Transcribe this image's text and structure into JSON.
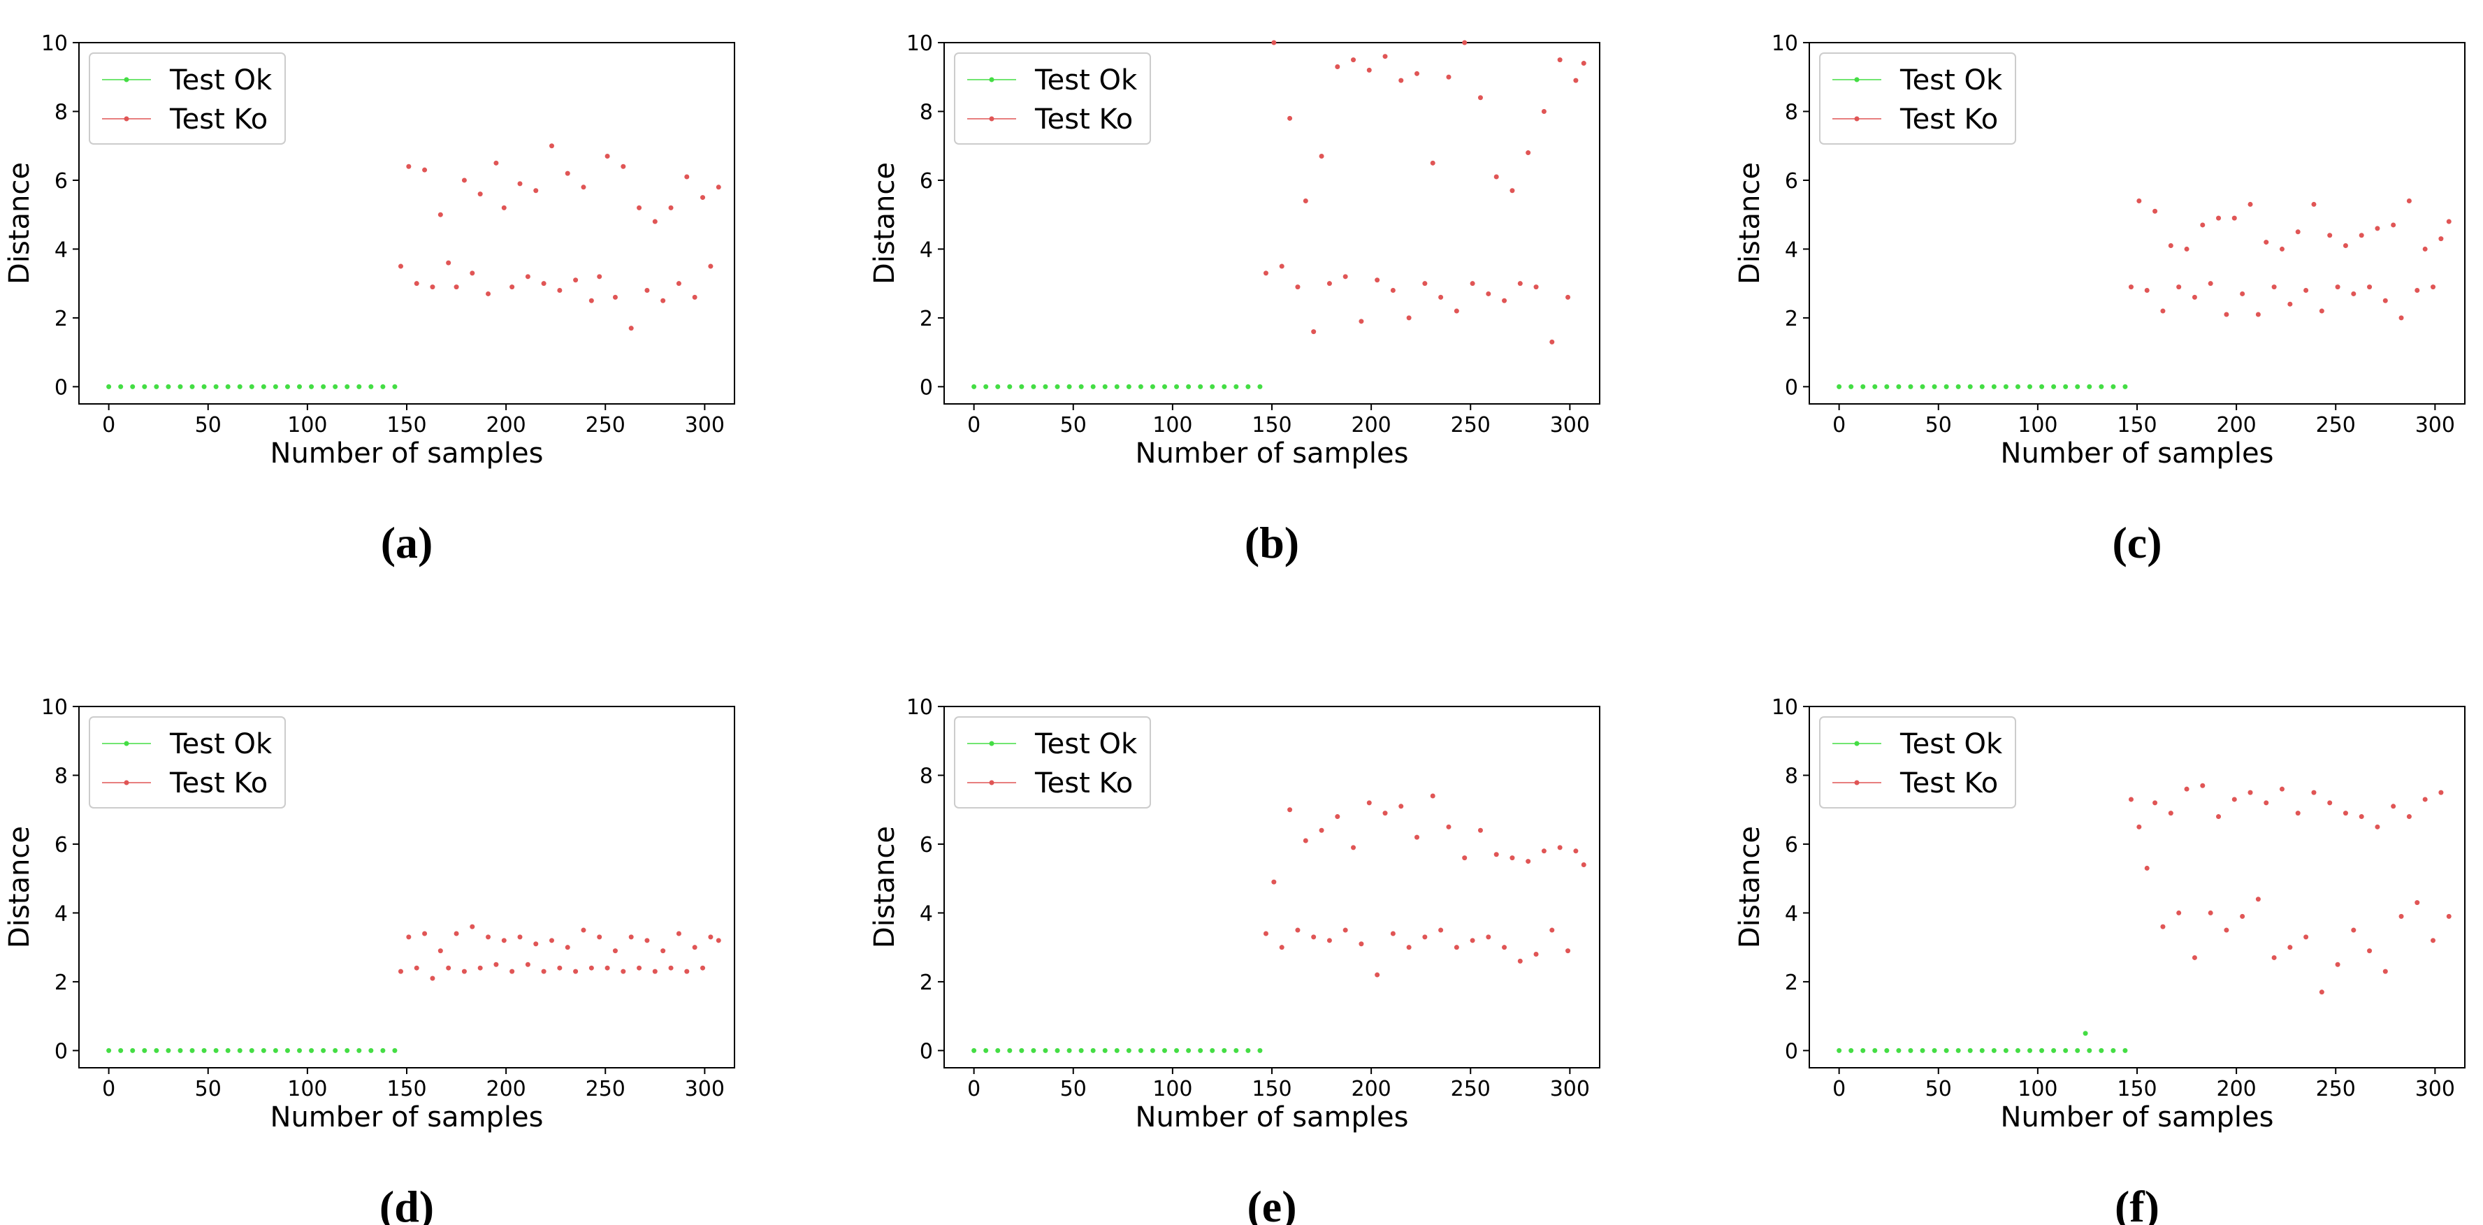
{
  "chart_data": [
    {
      "type": "line",
      "caption": "(a)",
      "xlabel": "Number of samples",
      "ylabel": "Distance",
      "xlim": [
        -15,
        315
      ],
      "ylim": [
        -0.5,
        10
      ],
      "xticks": [
        0,
        50,
        100,
        150,
        200,
        250,
        300
      ],
      "yticks": [
        0,
        2,
        4,
        6,
        8,
        10
      ],
      "legend": "upper left",
      "series": [
        {
          "name": "Test Ok",
          "color": "#44dd44",
          "x": [
            0,
            6,
            12,
            18,
            24,
            30,
            36,
            42,
            48,
            54,
            60,
            66,
            72,
            78,
            84,
            90,
            96,
            102,
            108,
            114,
            120,
            126,
            132,
            138,
            144
          ],
          "values": [
            0,
            0,
            0,
            0,
            0,
            0,
            0,
            0,
            0,
            0,
            0,
            0,
            0,
            0,
            0,
            0,
            0,
            0,
            0,
            0,
            0,
            0,
            0,
            0,
            0
          ]
        },
        {
          "name": "Test Ko",
          "color": "#e05555",
          "x": [
            147,
            151,
            155,
            159,
            163,
            167,
            171,
            175,
            179,
            183,
            187,
            191,
            195,
            199,
            203,
            207,
            211,
            215,
            219,
            223,
            227,
            231,
            235,
            239,
            243,
            247,
            251,
            255,
            259,
            263,
            267,
            271,
            275,
            279,
            283,
            287,
            291,
            295,
            299,
            303,
            307
          ],
          "values": [
            3.5,
            6.4,
            3.0,
            6.3,
            2.9,
            5.0,
            3.6,
            2.9,
            6.0,
            3.3,
            5.6,
            2.7,
            6.5,
            5.2,
            2.9,
            5.9,
            3.2,
            5.7,
            3.0,
            7.0,
            2.8,
            6.2,
            3.1,
            5.8,
            2.5,
            3.2,
            6.7,
            2.6,
            6.4,
            1.7,
            5.2,
            2.8,
            4.8,
            2.5,
            5.2,
            3.0,
            6.1,
            2.6,
            5.5,
            3.5,
            5.8
          ]
        }
      ]
    },
    {
      "type": "line",
      "caption": "(b)",
      "xlabel": "Number of samples",
      "ylabel": "Distance",
      "xlim": [
        -15,
        315
      ],
      "ylim": [
        -0.5,
        10
      ],
      "xticks": [
        0,
        50,
        100,
        150,
        200,
        250,
        300
      ],
      "yticks": [
        0,
        2,
        4,
        6,
        8,
        10
      ],
      "legend": "upper left",
      "series": [
        {
          "name": "Test Ok",
          "color": "#44dd44",
          "x": [
            0,
            6,
            12,
            18,
            24,
            30,
            36,
            42,
            48,
            54,
            60,
            66,
            72,
            78,
            84,
            90,
            96,
            102,
            108,
            114,
            120,
            126,
            132,
            138,
            144
          ],
          "values": [
            0,
            0,
            0,
            0,
            0,
            0,
            0,
            0,
            0,
            0,
            0,
            0,
            0,
            0,
            0,
            0,
            0,
            0,
            0,
            0,
            0,
            0,
            0,
            0,
            0
          ]
        },
        {
          "name": "Test Ko",
          "color": "#e05555",
          "x": [
            147,
            151,
            155,
            159,
            163,
            167,
            171,
            175,
            179,
            183,
            187,
            191,
            195,
            199,
            203,
            207,
            211,
            215,
            219,
            223,
            227,
            231,
            235,
            239,
            243,
            247,
            251,
            255,
            259,
            263,
            267,
            271,
            275,
            279,
            283,
            287,
            291,
            295,
            299,
            303,
            307
          ],
          "values": [
            3.3,
            10.0,
            3.5,
            7.8,
            2.9,
            5.4,
            1.6,
            6.7,
            3.0,
            9.3,
            3.2,
            9.5,
            1.9,
            9.2,
            3.1,
            9.6,
            2.8,
            8.9,
            2.0,
            9.1,
            3.0,
            6.5,
            2.6,
            9.0,
            2.2,
            10.0,
            3.0,
            8.4,
            2.7,
            6.1,
            2.5,
            5.7,
            3.0,
            6.8,
            2.9,
            8.0,
            1.3,
            9.5,
            2.6,
            8.9,
            9.4
          ]
        }
      ]
    },
    {
      "type": "line",
      "caption": "(c)",
      "xlabel": "Number of samples",
      "ylabel": "Distance",
      "xlim": [
        -15,
        315
      ],
      "ylim": [
        -0.5,
        10
      ],
      "xticks": [
        0,
        50,
        100,
        150,
        200,
        250,
        300
      ],
      "yticks": [
        0,
        2,
        4,
        6,
        8,
        10
      ],
      "legend": "upper left",
      "series": [
        {
          "name": "Test Ok",
          "color": "#44dd44",
          "x": [
            0,
            6,
            12,
            18,
            24,
            30,
            36,
            42,
            48,
            54,
            60,
            66,
            72,
            78,
            84,
            90,
            96,
            102,
            108,
            114,
            120,
            126,
            132,
            138,
            144
          ],
          "values": [
            0,
            0,
            0,
            0,
            0,
            0,
            0,
            0,
            0,
            0,
            0,
            0,
            0,
            0,
            0,
            0,
            0,
            0,
            0,
            0,
            0,
            0,
            0,
            0,
            0
          ]
        },
        {
          "name": "Test Ko",
          "color": "#e05555",
          "x": [
            147,
            151,
            155,
            159,
            163,
            167,
            171,
            175,
            179,
            183,
            187,
            191,
            195,
            199,
            203,
            207,
            211,
            215,
            219,
            223,
            227,
            231,
            235,
            239,
            243,
            247,
            251,
            255,
            259,
            263,
            267,
            271,
            275,
            279,
            283,
            287,
            291,
            295,
            299,
            303,
            307
          ],
          "values": [
            2.9,
            5.4,
            2.8,
            5.1,
            2.2,
            4.1,
            2.9,
            4.0,
            2.6,
            4.7,
            3.0,
            4.9,
            2.1,
            4.9,
            2.7,
            5.3,
            2.1,
            4.2,
            2.9,
            4.0,
            2.4,
            4.5,
            2.8,
            5.3,
            2.2,
            4.4,
            2.9,
            4.1,
            2.7,
            4.4,
            2.9,
            4.6,
            2.5,
            4.7,
            2.0,
            5.4,
            2.8,
            4.0,
            2.9,
            4.3,
            4.8
          ]
        }
      ]
    },
    {
      "type": "line",
      "caption": "(d)",
      "xlabel": "Number of samples",
      "ylabel": "Distance",
      "xlim": [
        -15,
        315
      ],
      "ylim": [
        -0.5,
        10
      ],
      "xticks": [
        0,
        50,
        100,
        150,
        200,
        250,
        300
      ],
      "yticks": [
        0,
        2,
        4,
        6,
        8,
        10
      ],
      "legend": "upper left",
      "series": [
        {
          "name": "Test Ok",
          "color": "#44dd44",
          "x": [
            0,
            6,
            12,
            18,
            24,
            30,
            36,
            42,
            48,
            54,
            60,
            66,
            72,
            78,
            84,
            90,
            96,
            102,
            108,
            114,
            120,
            126,
            132,
            138,
            144
          ],
          "values": [
            0,
            0,
            0,
            0,
            0,
            0,
            0,
            0,
            0,
            0,
            0,
            0,
            0,
            0,
            0,
            0,
            0,
            0,
            0,
            0,
            0,
            0,
            0,
            0,
            0
          ]
        },
        {
          "name": "Test Ko",
          "color": "#e05555",
          "x": [
            147,
            151,
            155,
            159,
            163,
            167,
            171,
            175,
            179,
            183,
            187,
            191,
            195,
            199,
            203,
            207,
            211,
            215,
            219,
            223,
            227,
            231,
            235,
            239,
            243,
            247,
            251,
            255,
            259,
            263,
            267,
            271,
            275,
            279,
            283,
            287,
            291,
            295,
            299,
            303,
            307
          ],
          "values": [
            2.3,
            3.3,
            2.4,
            3.4,
            2.1,
            2.9,
            2.4,
            3.4,
            2.3,
            3.6,
            2.4,
            3.3,
            2.5,
            3.2,
            2.3,
            3.3,
            2.5,
            3.1,
            2.3,
            3.2,
            2.4,
            3.0,
            2.3,
            3.5,
            2.4,
            3.3,
            2.4,
            2.9,
            2.3,
            3.3,
            2.4,
            3.2,
            2.3,
            2.9,
            2.4,
            3.4,
            2.3,
            3.0,
            2.4,
            3.3,
            3.2
          ]
        }
      ]
    },
    {
      "type": "line",
      "caption": "(e)",
      "xlabel": "Number of samples",
      "ylabel": "Distance",
      "xlim": [
        -15,
        315
      ],
      "ylim": [
        -0.5,
        10
      ],
      "xticks": [
        0,
        50,
        100,
        150,
        200,
        250,
        300
      ],
      "yticks": [
        0,
        2,
        4,
        6,
        8,
        10
      ],
      "legend": "upper left",
      "series": [
        {
          "name": "Test Ok",
          "color": "#44dd44",
          "x": [
            0,
            6,
            12,
            18,
            24,
            30,
            36,
            42,
            48,
            54,
            60,
            66,
            72,
            78,
            84,
            90,
            96,
            102,
            108,
            114,
            120,
            126,
            132,
            138,
            144
          ],
          "values": [
            0,
            0,
            0,
            0,
            0,
            0,
            0,
            0,
            0,
            0,
            0,
            0,
            0,
            0,
            0,
            0,
            0,
            0,
            0,
            0,
            0,
            0,
            0,
            0,
            0
          ]
        },
        {
          "name": "Test Ko",
          "color": "#e05555",
          "x": [
            147,
            151,
            155,
            159,
            163,
            167,
            171,
            175,
            179,
            183,
            187,
            191,
            195,
            199,
            203,
            207,
            211,
            215,
            219,
            223,
            227,
            231,
            235,
            239,
            243,
            247,
            251,
            255,
            259,
            263,
            267,
            271,
            275,
            279,
            283,
            287,
            291,
            295,
            299,
            303,
            307
          ],
          "values": [
            3.4,
            4.9,
            3.0,
            7.0,
            3.5,
            6.1,
            3.3,
            6.4,
            3.2,
            6.8,
            3.5,
            5.9,
            3.1,
            7.2,
            2.2,
            6.9,
            3.4,
            7.1,
            3.0,
            6.2,
            3.3,
            7.4,
            3.5,
            6.5,
            3.0,
            5.6,
            3.2,
            6.4,
            3.3,
            5.7,
            3.0,
            5.6,
            2.6,
            5.5,
            2.8,
            5.8,
            3.5,
            5.9,
            2.9,
            5.8,
            5.4
          ]
        }
      ]
    },
    {
      "type": "line",
      "caption": "(f)",
      "xlabel": "Number of samples",
      "ylabel": "Distance",
      "xlim": [
        -15,
        315
      ],
      "ylim": [
        -0.5,
        10
      ],
      "xticks": [
        0,
        50,
        100,
        150,
        200,
        250,
        300
      ],
      "yticks": [
        0,
        2,
        4,
        6,
        8,
        10
      ],
      "legend": "upper left",
      "series": [
        {
          "name": "Test Ok",
          "color": "#44dd44",
          "x": [
            0,
            6,
            12,
            18,
            24,
            30,
            36,
            42,
            48,
            54,
            60,
            66,
            72,
            78,
            84,
            90,
            96,
            102,
            108,
            114,
            120,
            124,
            126,
            132,
            138,
            144
          ],
          "values": [
            0,
            0,
            0,
            0,
            0,
            0,
            0,
            0,
            0,
            0,
            0,
            0,
            0,
            0,
            0,
            0,
            0,
            0,
            0,
            0,
            0,
            0.5,
            0,
            0,
            0,
            0
          ]
        },
        {
          "name": "Test Ko",
          "color": "#e05555",
          "x": [
            147,
            151,
            155,
            159,
            163,
            167,
            171,
            175,
            179,
            183,
            187,
            191,
            195,
            199,
            203,
            207,
            211,
            215,
            219,
            223,
            227,
            231,
            235,
            239,
            243,
            247,
            251,
            255,
            259,
            263,
            267,
            271,
            275,
            279,
            283,
            287,
            291,
            295,
            299,
            303,
            307
          ],
          "values": [
            7.3,
            6.5,
            5.3,
            7.2,
            3.6,
            6.9,
            4.0,
            7.6,
            2.7,
            7.7,
            4.0,
            6.8,
            3.5,
            7.3,
            3.9,
            7.5,
            4.4,
            7.2,
            2.7,
            7.6,
            3.0,
            6.9,
            3.3,
            7.5,
            1.7,
            7.2,
            2.5,
            6.9,
            3.5,
            6.8,
            2.9,
            6.5,
            2.3,
            7.1,
            3.9,
            6.8,
            4.3,
            7.3,
            3.2,
            7.5,
            3.9
          ]
        }
      ]
    }
  ]
}
